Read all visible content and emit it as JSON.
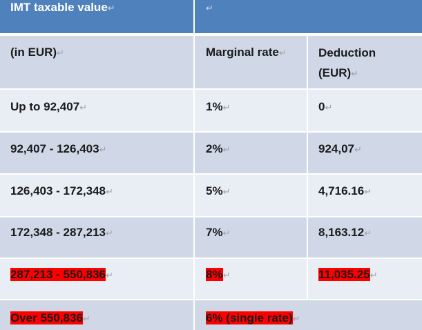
{
  "table": {
    "header": {
      "col1": "IMT taxable value",
      "col2": ""
    },
    "subheader": {
      "col1": "(in EUR)",
      "col2": "Marginal rate",
      "col3_line1": "Deduction",
      "col3_line2": "(EUR)"
    },
    "rows": [
      {
        "range": "Up to 92,407",
        "rate": "1%",
        "deduction": "0"
      },
      {
        "range": "92,407 - 126,403",
        "rate": "2%",
        "deduction": "924,07"
      },
      {
        "range": "126,403 - 172,348",
        "rate": "5%",
        "deduction": "4,716.16"
      },
      {
        "range": "172,348 - 287,213",
        "rate": "7%",
        "deduction": "8,163.12"
      },
      {
        "range": "287,213 - 550,836",
        "rate": "8%",
        "deduction": "11,035.25"
      }
    ],
    "last_row": {
      "range": "Over 550,836",
      "rate": "6% (single rate)"
    },
    "paragraph_mark": "↵"
  },
  "colors": {
    "header_bg": "#4f81bd",
    "band_dark": "#d0d8e8",
    "band_light": "#e9edf4",
    "highlight": "#ff0000"
  }
}
